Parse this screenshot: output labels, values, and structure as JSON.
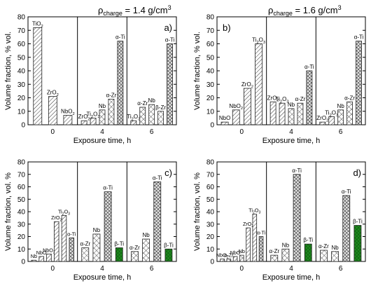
{
  "headers": [
    {
      "prefix": "ρ",
      "sub": "charge",
      "text": " = 1.4 g/cm",
      "sup": "3"
    },
    {
      "prefix": "ρ",
      "sub": "charge",
      "text": " = 1.6 g/cm",
      "sup": "3"
    }
  ],
  "chart_data": [
    {
      "type": "bar",
      "panel_label": "a)",
      "ylabel": "Volume fraction, % vol.",
      "xlabel": "Exposure time, h",
      "ylim": [
        0,
        80
      ],
      "yticks": [
        0,
        10,
        20,
        30,
        40,
        50,
        60,
        70,
        80
      ],
      "groups": [
        {
          "label": "0",
          "bars": [
            {
              "name": "TiO2",
              "value": 72,
              "pattern": "diag"
            },
            {
              "name": "ZrO2",
              "value": 21,
              "pattern": "diag"
            },
            {
              "name": "NbO2",
              "value": 7,
              "pattern": "diag"
            }
          ]
        },
        {
          "label": "4",
          "bars": [
            {
              "name": "ZrO2",
              "value": 3,
              "pattern": "diag"
            },
            {
              "name": "Ti2O3",
              "value": 5,
              "pattern": "diag"
            },
            {
              "name": "Nb",
              "value": 11,
              "pattern": "cross"
            },
            {
              "name": "α-Zr",
              "value": 19,
              "pattern": "cross"
            },
            {
              "name": "α-Ti",
              "value": 62,
              "pattern": "dcross"
            }
          ]
        },
        {
          "label": "6",
          "bars": [
            {
              "name": "Ti2O3",
              "value": 3,
              "pattern": "diag"
            },
            {
              "name": "α-Zr",
              "value": 13,
              "pattern": "cross"
            },
            {
              "name": "Nb",
              "value": 15,
              "pattern": "cross"
            },
            {
              "name": "β-Zr",
              "value": 10,
              "pattern": "cross"
            },
            {
              "name": "α-Ti",
              "value": 60,
              "pattern": "dcross"
            }
          ]
        }
      ]
    },
    {
      "type": "bar",
      "panel_label": "b)",
      "ylabel": "Volume fraction, % vol.",
      "xlabel": "Exposure time, h",
      "ylim": [
        0,
        80
      ],
      "yticks": [
        0,
        10,
        20,
        30,
        40,
        50,
        60,
        70,
        80
      ],
      "groups": [
        {
          "label": "0",
          "bars": [
            {
              "name": "NbO",
              "value": 2,
              "pattern": "diag"
            },
            {
              "name": "NbO2",
              "value": 11,
              "pattern": "diag"
            },
            {
              "name": "ZrO2",
              "value": 27,
              "pattern": "diag"
            },
            {
              "name": "Ti2O3",
              "value": 60,
              "pattern": "diag"
            }
          ]
        },
        {
          "label": "4",
          "bars": [
            {
              "name": "ZrO2",
              "value": 17,
              "pattern": "diag"
            },
            {
              "name": "Ti2O3",
              "value": 16,
              "pattern": "diag"
            },
            {
              "name": "Nb",
              "value": 12,
              "pattern": "cross"
            },
            {
              "name": "α-Zr",
              "value": 16,
              "pattern": "cross"
            },
            {
              "name": "α-Ti",
              "value": 40,
              "pattern": "dcross"
            }
          ]
        },
        {
          "label": "6",
          "bars": [
            {
              "name": "ZrO2",
              "value": 2,
              "pattern": "diag"
            },
            {
              "name": "Ti2O3",
              "value": 6,
              "pattern": "diag"
            },
            {
              "name": "Nb",
              "value": 11,
              "pattern": "cross"
            },
            {
              "name": "α-Zr",
              "value": 17,
              "pattern": "cross"
            },
            {
              "name": "α-Ti",
              "value": 62,
              "pattern": "dcross"
            }
          ]
        }
      ]
    },
    {
      "type": "bar",
      "panel_label": "c)",
      "ylabel": "Volume fraction, vol. %",
      "xlabel": "Exposure time, h",
      "ylim": [
        0,
        80
      ],
      "yticks": [
        0,
        10,
        20,
        30,
        40,
        50,
        60,
        70,
        80
      ],
      "groups": [
        {
          "label": "0",
          "bars": [
            {
              "name": "Nb",
              "value": 1,
              "pattern": "cross"
            },
            {
              "name": "NbO",
              "value": 4,
              "pattern": "diag"
            },
            {
              "name": "NbO2",
              "value": 6,
              "pattern": "diag"
            },
            {
              "name": "ZrO2",
              "value": 32,
              "pattern": "diag"
            },
            {
              "name": "Ti2O3",
              "value": 37,
              "pattern": "diag"
            },
            {
              "name": "α-Ti",
              "value": 19,
              "pattern": "dcross"
            }
          ]
        },
        {
          "label": "4",
          "bars": [
            {
              "name": "α-Zr",
              "value": 11,
              "pattern": "cross"
            },
            {
              "name": "Nb",
              "value": 22,
              "pattern": "cross"
            },
            {
              "name": "α-Ti",
              "value": 56,
              "pattern": "dcross"
            },
            {
              "name": "β-Ti",
              "value": 11,
              "pattern": "green"
            }
          ]
        },
        {
          "label": "6",
          "bars": [
            {
              "name": "α-Zr",
              "value": 8,
              "pattern": "cross"
            },
            {
              "name": "Nb",
              "value": 18,
              "pattern": "cross"
            },
            {
              "name": "α-Ti",
              "value": 64,
              "pattern": "dcross"
            },
            {
              "name": "β-Ti",
              "value": 10,
              "pattern": "green"
            }
          ]
        }
      ]
    },
    {
      "type": "bar",
      "panel_label": "d)",
      "ylabel": "Volume fraction, vol. %",
      "xlabel": "Exposure time, h",
      "ylim": [
        0,
        80
      ],
      "yticks": [
        0,
        10,
        20,
        30,
        40,
        50,
        60,
        70,
        80
      ],
      "groups": [
        {
          "label": "0",
          "bars": [
            {
              "name": "NbO2",
              "value": 2,
              "pattern": "diag"
            },
            {
              "name": "α-Zr",
              "value": 2,
              "pattern": "cross"
            },
            {
              "name": "NbO",
              "value": 4,
              "pattern": "diag"
            },
            {
              "name": "Nb",
              "value": 5,
              "pattern": "cross"
            },
            {
              "name": "ZrO2",
              "value": 27,
              "pattern": "diag"
            },
            {
              "name": "Ti2O3",
              "value": 38,
              "pattern": "diag"
            },
            {
              "name": "α-Ti",
              "value": 20,
              "pattern": "dcross"
            }
          ]
        },
        {
          "label": "4",
          "bars": [
            {
              "name": "α-Zr",
              "value": 5,
              "pattern": "cross"
            },
            {
              "name": "Nb",
              "value": 10,
              "pattern": "cross"
            },
            {
              "name": "α-Ti",
              "value": 70,
              "pattern": "dcross"
            },
            {
              "name": "β-Ti",
              "value": 14,
              "pattern": "green"
            }
          ]
        },
        {
          "label": "6",
          "bars": [
            {
              "name": "α-Zr",
              "value": 9,
              "pattern": "cross"
            },
            {
              "name": "Nb",
              "value": 8,
              "pattern": "cross"
            },
            {
              "name": "α-Ti",
              "value": 53,
              "pattern": "dcross"
            },
            {
              "name": "β-Ti",
              "value": 29,
              "pattern": "green"
            }
          ]
        }
      ]
    }
  ],
  "colors": {
    "axis": "#000000",
    "bar_stroke": "#222222",
    "hatch": "#333333",
    "green": "#1f8a1f",
    "green_dark": "#0b4d0b"
  }
}
